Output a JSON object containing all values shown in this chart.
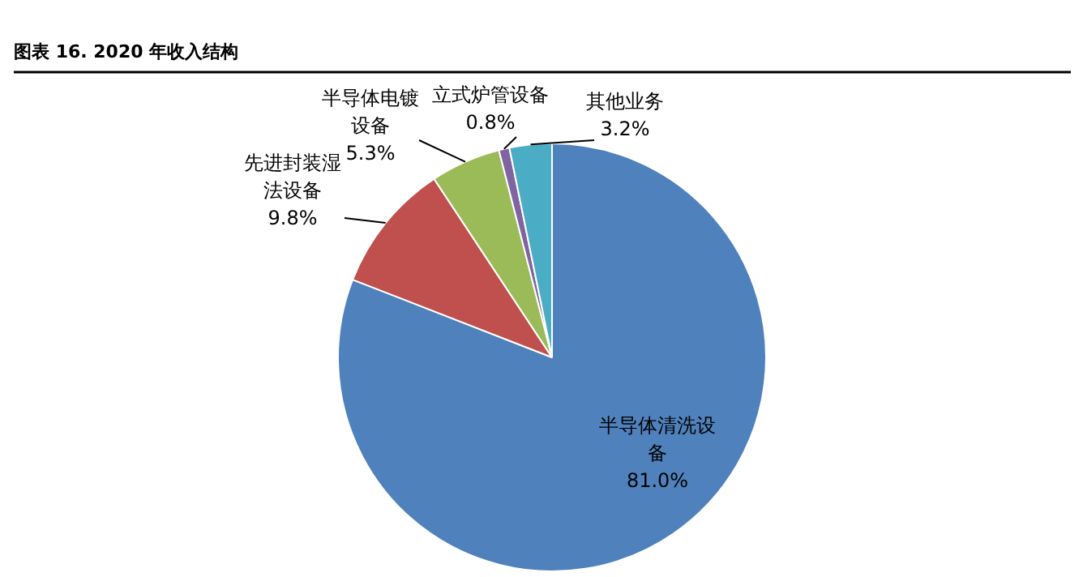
{
  "chart_data": {
    "type": "pie",
    "title": "图表 16. 2020 年收入结构",
    "categories": [
      "半导体清洗设备",
      "先进封装湿法设备",
      "半导体电镀设备",
      "立式炉管设备",
      "其他业务"
    ],
    "values": [
      81.0,
      9.8,
      5.3,
      0.8,
      3.2
    ],
    "colors": [
      "#4f81bd",
      "#c0504d",
      "#9bbb59",
      "#8064a2",
      "#4bacc6"
    ],
    "value_labels": [
      "81.0%",
      "9.8%",
      "5.3%",
      "0.8%",
      "3.2%"
    ]
  }
}
